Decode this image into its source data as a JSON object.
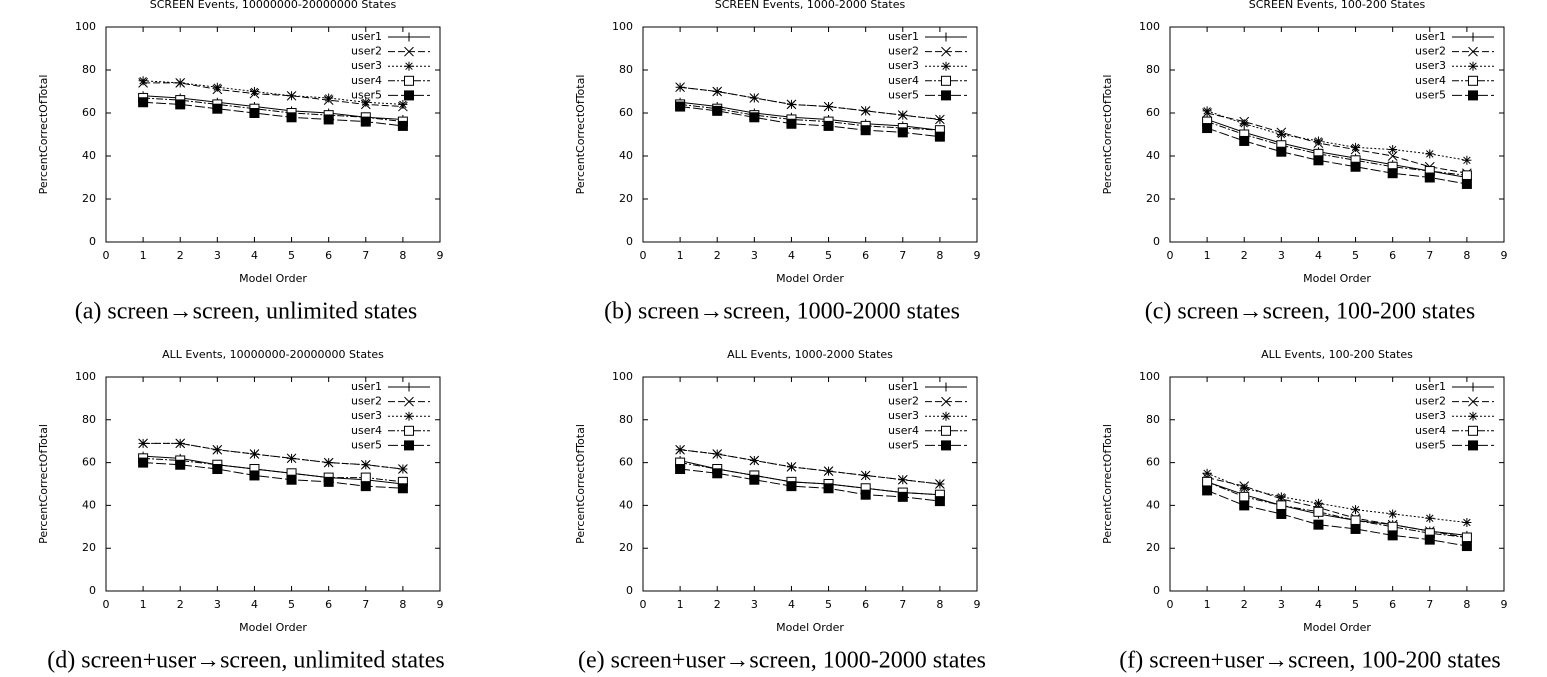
{
  "chart_data": [
    {
      "type": "line",
      "title": "SCREEN Events, 10000000-20000000 States",
      "xlabel": "Model Order",
      "ylabel": "PercentCorrectOfTotal",
      "caption": "(a) screen→screen, unlimited states",
      "x": [
        1,
        2,
        3,
        4,
        5,
        6,
        7,
        8
      ],
      "xlim": [
        0,
        9
      ],
      "xticks": [
        0,
        1,
        2,
        3,
        4,
        5,
        6,
        7,
        8,
        9
      ],
      "ylim": [
        0,
        100
      ],
      "yticks": [
        0,
        20,
        40,
        60,
        80,
        100
      ],
      "legend": "upper right",
      "series": [
        {
          "name": "user1",
          "color": "#000000",
          "marker": "plus",
          "dash": "solid",
          "values": [
            68,
            67,
            65,
            63,
            61,
            60,
            58,
            57
          ]
        },
        {
          "name": "user2",
          "color": "#000000",
          "marker": "cross",
          "dash": "dashed",
          "values": [
            74,
            74,
            71,
            69,
            68,
            66,
            64,
            63
          ]
        },
        {
          "name": "user3",
          "color": "#000000",
          "marker": "star",
          "dash": "dotted",
          "values": [
            75,
            74,
            72,
            70,
            68,
            67,
            65,
            64
          ]
        },
        {
          "name": "user4",
          "color": "#000000",
          "marker": "square",
          "dash": "dashdot",
          "values": [
            67,
            66,
            64,
            62,
            60,
            59,
            58,
            56
          ]
        },
        {
          "name": "user5",
          "color": "#000000",
          "marker": "filled-square",
          "dash": "longdash",
          "values": [
            65,
            64,
            62,
            60,
            58,
            57,
            56,
            54
          ]
        }
      ]
    },
    {
      "type": "line",
      "title": "SCREEN Events, 1000-2000 States",
      "xlabel": "Model Order",
      "ylabel": "PercentCorrectOfTotal",
      "caption": "(b) screen→screen, 1000-2000 states",
      "x": [
        1,
        2,
        3,
        4,
        5,
        6,
        7,
        8
      ],
      "xlim": [
        0,
        9
      ],
      "xticks": [
        0,
        1,
        2,
        3,
        4,
        5,
        6,
        7,
        8,
        9
      ],
      "ylim": [
        0,
        100
      ],
      "yticks": [
        0,
        20,
        40,
        60,
        80,
        100
      ],
      "legend": "upper right",
      "series": [
        {
          "name": "user1",
          "color": "#000000",
          "marker": "plus",
          "dash": "solid",
          "values": [
            65,
            63,
            60,
            58,
            57,
            55,
            54,
            52
          ]
        },
        {
          "name": "user2",
          "color": "#000000",
          "marker": "cross",
          "dash": "dashed",
          "values": [
            72,
            70,
            67,
            64,
            63,
            61,
            59,
            57
          ]
        },
        {
          "name": "user3",
          "color": "#000000",
          "marker": "star",
          "dash": "dotted",
          "values": [
            72,
            70,
            67,
            64,
            63,
            61,
            59,
            57
          ]
        },
        {
          "name": "user4",
          "color": "#000000",
          "marker": "square",
          "dash": "dashdot",
          "values": [
            64,
            62,
            59,
            57,
            56,
            54,
            53,
            52
          ]
        },
        {
          "name": "user5",
          "color": "#000000",
          "marker": "filled-square",
          "dash": "longdash",
          "values": [
            63,
            61,
            58,
            55,
            54,
            52,
            51,
            49
          ]
        }
      ]
    },
    {
      "type": "line",
      "title": "SCREEN Events, 100-200 States",
      "xlabel": "Model Order",
      "ylabel": "PercentCorrectOfTotal",
      "caption": "(c) screen→screen, 100-200 states",
      "x": [
        1,
        2,
        3,
        4,
        5,
        6,
        7,
        8
      ],
      "xlim": [
        0,
        9
      ],
      "xticks": [
        0,
        1,
        2,
        3,
        4,
        5,
        6,
        7,
        8,
        9
      ],
      "ylim": [
        0,
        100
      ],
      "yticks": [
        0,
        20,
        40,
        60,
        80,
        100
      ],
      "legend": "upper right",
      "series": [
        {
          "name": "user1",
          "color": "#000000",
          "marker": "plus",
          "dash": "solid",
          "values": [
            57,
            51,
            46,
            42,
            39,
            36,
            33,
            30
          ]
        },
        {
          "name": "user2",
          "color": "#000000",
          "marker": "cross",
          "dash": "dashed",
          "values": [
            60,
            56,
            51,
            46,
            43,
            40,
            35,
            32
          ]
        },
        {
          "name": "user3",
          "color": "#000000",
          "marker": "star",
          "dash": "dotted",
          "values": [
            61,
            55,
            50,
            47,
            44,
            43,
            41,
            38
          ]
        },
        {
          "name": "user4",
          "color": "#000000",
          "marker": "square",
          "dash": "dashdot",
          "values": [
            56,
            50,
            45,
            41,
            38,
            35,
            33,
            31
          ]
        },
        {
          "name": "user5",
          "color": "#000000",
          "marker": "filled-square",
          "dash": "longdash",
          "values": [
            53,
            47,
            42,
            38,
            35,
            32,
            30,
            27
          ]
        }
      ]
    },
    {
      "type": "line",
      "title": "ALL Events, 10000000-20000000 States",
      "xlabel": "Model Order",
      "ylabel": "PercentCorrectOfTotal",
      "caption": "(d) screen+user→screen, unlimited states",
      "x": [
        1,
        2,
        3,
        4,
        5,
        6,
        7,
        8
      ],
      "xlim": [
        0,
        9
      ],
      "xticks": [
        0,
        1,
        2,
        3,
        4,
        5,
        6,
        7,
        8,
        9
      ],
      "ylim": [
        0,
        100
      ],
      "yticks": [
        0,
        20,
        40,
        60,
        80,
        100
      ],
      "legend": "upper right",
      "series": [
        {
          "name": "user1",
          "color": "#000000",
          "marker": "plus",
          "dash": "solid",
          "values": [
            63,
            62,
            59,
            57,
            55,
            53,
            52,
            50
          ]
        },
        {
          "name": "user2",
          "color": "#000000",
          "marker": "cross",
          "dash": "dashed",
          "values": [
            69,
            69,
            66,
            64,
            62,
            60,
            59,
            57
          ]
        },
        {
          "name": "user3",
          "color": "#000000",
          "marker": "star",
          "dash": "dotted",
          "values": [
            69,
            69,
            66,
            64,
            62,
            60,
            59,
            57
          ]
        },
        {
          "name": "user4",
          "color": "#000000",
          "marker": "square",
          "dash": "dashdot",
          "values": [
            62,
            61,
            59,
            57,
            55,
            53,
            53,
            51
          ]
        },
        {
          "name": "user5",
          "color": "#000000",
          "marker": "filled-square",
          "dash": "longdash",
          "values": [
            60,
            59,
            57,
            54,
            52,
            51,
            49,
            48
          ]
        }
      ]
    },
    {
      "type": "line",
      "title": "ALL Events, 1000-2000 States",
      "xlabel": "Model Order",
      "ylabel": "PercentCorrectOfTotal",
      "caption": "(e) screen+user→screen, 1000-2000 states",
      "x": [
        1,
        2,
        3,
        4,
        5,
        6,
        7,
        8
      ],
      "xlim": [
        0,
        9
      ],
      "xticks": [
        0,
        1,
        2,
        3,
        4,
        5,
        6,
        7,
        8,
        9
      ],
      "ylim": [
        0,
        100
      ],
      "yticks": [
        0,
        20,
        40,
        60,
        80,
        100
      ],
      "legend": "upper right",
      "series": [
        {
          "name": "user1",
          "color": "#000000",
          "marker": "plus",
          "dash": "solid",
          "values": [
            61,
            57,
            54,
            51,
            50,
            48,
            46,
            45
          ]
        },
        {
          "name": "user2",
          "color": "#000000",
          "marker": "cross",
          "dash": "dashed",
          "values": [
            66,
            64,
            61,
            58,
            56,
            54,
            52,
            50
          ]
        },
        {
          "name": "user3",
          "color": "#000000",
          "marker": "star",
          "dash": "dotted",
          "values": [
            66,
            64,
            61,
            58,
            56,
            54,
            52,
            50
          ]
        },
        {
          "name": "user4",
          "color": "#000000",
          "marker": "square",
          "dash": "dashdot",
          "values": [
            60,
            57,
            54,
            51,
            50,
            48,
            46,
            45
          ]
        },
        {
          "name": "user5",
          "color": "#000000",
          "marker": "filled-square",
          "dash": "longdash",
          "values": [
            57,
            55,
            52,
            49,
            48,
            45,
            44,
            42
          ]
        }
      ]
    },
    {
      "type": "line",
      "title": "ALL Events, 100-200 States",
      "xlabel": "Model Order",
      "ylabel": "PercentCorrectOfTotal",
      "caption": "(f) screen+user→screen, 100-200 states",
      "x": [
        1,
        2,
        3,
        4,
        5,
        6,
        7,
        8
      ],
      "xlim": [
        0,
        9
      ],
      "xticks": [
        0,
        1,
        2,
        3,
        4,
        5,
        6,
        7,
        8,
        9
      ],
      "ylim": [
        0,
        100
      ],
      "yticks": [
        0,
        20,
        40,
        60,
        80,
        100
      ],
      "legend": "upper right",
      "series": [
        {
          "name": "user1",
          "color": "#000000",
          "marker": "plus",
          "dash": "solid",
          "values": [
            51,
            45,
            40,
            36,
            33,
            31,
            28,
            26
          ]
        },
        {
          "name": "user2",
          "color": "#000000",
          "marker": "cross",
          "dash": "dashed",
          "values": [
            53,
            49,
            43,
            39,
            34,
            31,
            28,
            25
          ]
        },
        {
          "name": "user3",
          "color": "#000000",
          "marker": "star",
          "dash": "dotted",
          "values": [
            55,
            48,
            44,
            41,
            38,
            36,
            34,
            32
          ]
        },
        {
          "name": "user4",
          "color": "#000000",
          "marker": "square",
          "dash": "dashdot",
          "values": [
            51,
            44,
            40,
            37,
            33,
            30,
            27,
            25
          ]
        },
        {
          "name": "user5",
          "color": "#000000",
          "marker": "filled-square",
          "dash": "longdash",
          "values": [
            47,
            40,
            36,
            31,
            29,
            26,
            24,
            21
          ]
        }
      ]
    }
  ]
}
